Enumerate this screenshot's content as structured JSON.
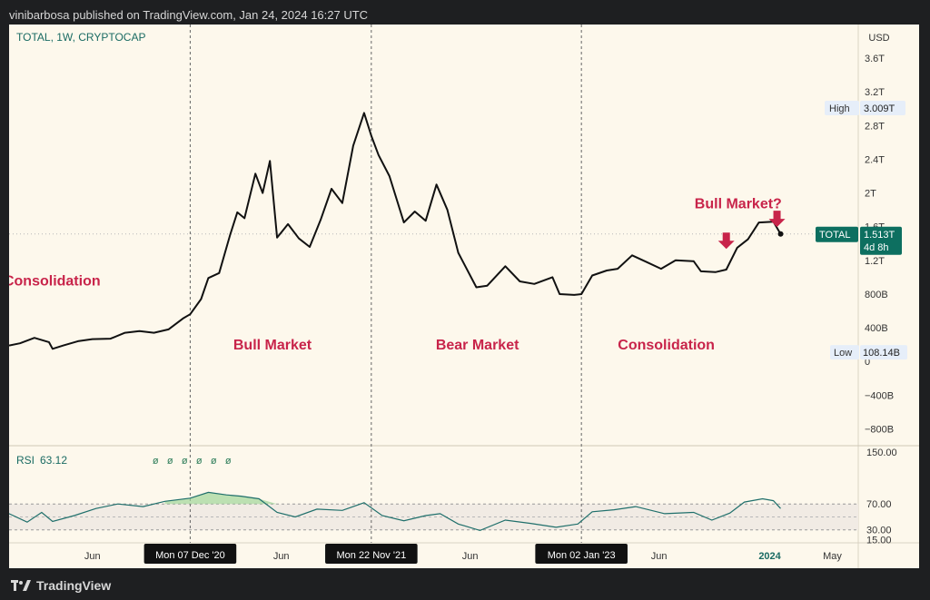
{
  "header": {
    "published": "vinibarbosa published on TradingView.com, Jan 24, 2024 16:27 UTC"
  },
  "footer": {
    "brand": "TradingView"
  },
  "colors": {
    "background": "#fdf8ec",
    "price_line": "#111111",
    "rsi_line": "#1f6f6b",
    "annotation": "#c8244a",
    "accent": "#1a6b63",
    "label_box": "#0d6f60"
  },
  "chart_data": [
    {
      "type": "line",
      "symbol": "TOTAL, 1W, CRYPTOCAP",
      "currency": "USD",
      "ylim": [
        -1000000000000,
        4000000000000
      ],
      "y_ticks": [
        {
          "value": 3600000000000,
          "label": "3.6T"
        },
        {
          "value": 3200000000000,
          "label": "3.2T"
        },
        {
          "value": 2800000000000,
          "label": "2.8T"
        },
        {
          "value": 2400000000000,
          "label": "2.4T"
        },
        {
          "value": 2000000000000,
          "label": "2T"
        },
        {
          "value": 1600000000000,
          "label": "1.6T"
        },
        {
          "value": 1200000000000,
          "label": "1.2T"
        },
        {
          "value": 800000000000,
          "label": "800B"
        },
        {
          "value": 400000000000,
          "label": "400B"
        },
        {
          "value": 0,
          "label": "0"
        },
        {
          "value": -400000000000,
          "label": "−400B"
        },
        {
          "value": -800000000000,
          "label": "−800B"
        }
      ],
      "x_ticks": [
        {
          "date": "2020-06-01",
          "label": "Jun"
        },
        {
          "date": "2021-06-01",
          "label": "Jun"
        },
        {
          "date": "2022-06-01",
          "label": "Jun"
        },
        {
          "date": "2023-06-01",
          "label": "Jun"
        },
        {
          "date": "2024-01-01",
          "label": "2024"
        },
        {
          "date": "2024-05-01",
          "label": "May"
        }
      ],
      "x_range": [
        "2019-12-23",
        "2024-06-20"
      ],
      "vertical_markers": [
        {
          "date": "2020-12-07",
          "label": "Mon 07 Dec '20"
        },
        {
          "date": "2021-11-22",
          "label": "Mon 22 Nov '21"
        },
        {
          "date": "2023-01-02",
          "label": "Mon 02 Jan '23"
        }
      ],
      "high": {
        "label": "High",
        "value": 3009000000000,
        "text": "3.009T"
      },
      "low": {
        "label": "Low",
        "value": 108140000000,
        "text": "108.14B"
      },
      "last": {
        "label": "TOTAL",
        "value": 1513000000000,
        "text": "1.513T",
        "countdown": "4d 8h"
      },
      "annotations": [
        {
          "text": "Consolidation",
          "date": "2020-03-15",
          "value": 900000000000
        },
        {
          "text": "Bull Market",
          "date": "2021-05-15",
          "value": 140000000000
        },
        {
          "text": "Bear Market",
          "date": "2022-06-15",
          "value": 140000000000
        },
        {
          "text": "Consolidation",
          "date": "2023-06-15",
          "value": 140000000000
        },
        {
          "text": "Bull Market?",
          "date": "2023-11-01",
          "value": 1820000000000
        }
      ],
      "arrows": [
        {
          "date": "2023-10-09",
          "value": 1400000000000
        },
        {
          "date": "2024-01-15",
          "value": 1660000000000
        }
      ],
      "series": [
        {
          "values": [
            [
              "2019-12-23",
              190000000000
            ],
            [
              "2020-01-13",
              215000000000
            ],
            [
              "2020-02-10",
              280000000000
            ],
            [
              "2020-03-09",
              230000000000
            ],
            [
              "2020-03-16",
              150000000000
            ],
            [
              "2020-04-06",
              190000000000
            ],
            [
              "2020-05-04",
              240000000000
            ],
            [
              "2020-06-01",
              265000000000
            ],
            [
              "2020-07-06",
              270000000000
            ],
            [
              "2020-08-03",
              340000000000
            ],
            [
              "2020-08-31",
              360000000000
            ],
            [
              "2020-09-28",
              340000000000
            ],
            [
              "2020-10-26",
              380000000000
            ],
            [
              "2020-11-23",
              510000000000
            ],
            [
              "2020-12-07",
              560000000000
            ],
            [
              "2020-12-28",
              740000000000
            ],
            [
              "2021-01-11",
              990000000000
            ],
            [
              "2021-02-01",
              1050000000000
            ],
            [
              "2021-02-22",
              1500000000000
            ],
            [
              "2021-03-08",
              1770000000000
            ],
            [
              "2021-03-22",
              1700000000000
            ],
            [
              "2021-04-12",
              2230000000000
            ],
            [
              "2021-04-26",
              2000000000000
            ],
            [
              "2021-05-10",
              2380000000000
            ],
            [
              "2021-05-24",
              1470000000000
            ],
            [
              "2021-06-14",
              1630000000000
            ],
            [
              "2021-07-05",
              1460000000000
            ],
            [
              "2021-07-26",
              1360000000000
            ],
            [
              "2021-08-16",
              1680000000000
            ],
            [
              "2021-09-06",
              2050000000000
            ],
            [
              "2021-09-27",
              1880000000000
            ],
            [
              "2021-10-18",
              2560000000000
            ],
            [
              "2021-11-08",
              2950000000000
            ],
            [
              "2021-11-22",
              2680000000000
            ],
            [
              "2021-12-06",
              2450000000000
            ],
            [
              "2021-12-27",
              2200000000000
            ],
            [
              "2022-01-24",
              1650000000000
            ],
            [
              "2022-02-14",
              1780000000000
            ],
            [
              "2022-03-07",
              1670000000000
            ],
            [
              "2022-03-28",
              2100000000000
            ],
            [
              "2022-04-18",
              1800000000000
            ],
            [
              "2022-05-09",
              1290000000000
            ],
            [
              "2022-06-13",
              880000000000
            ],
            [
              "2022-07-04",
              900000000000
            ],
            [
              "2022-08-08",
              1130000000000
            ],
            [
              "2022-09-05",
              950000000000
            ],
            [
              "2022-10-03",
              920000000000
            ],
            [
              "2022-11-07",
              1000000000000
            ],
            [
              "2022-11-21",
              800000000000
            ],
            [
              "2022-12-19",
              790000000000
            ],
            [
              "2023-01-02",
              800000000000
            ],
            [
              "2023-01-23",
              1020000000000
            ],
            [
              "2023-02-20",
              1080000000000
            ],
            [
              "2023-03-13",
              1100000000000
            ],
            [
              "2023-04-10",
              1260000000000
            ],
            [
              "2023-05-08",
              1180000000000
            ],
            [
              "2023-06-05",
              1100000000000
            ],
            [
              "2023-07-03",
              1200000000000
            ],
            [
              "2023-08-07",
              1190000000000
            ],
            [
              "2023-08-21",
              1070000000000
            ],
            [
              "2023-09-18",
              1060000000000
            ],
            [
              "2023-10-09",
              1090000000000
            ],
            [
              "2023-10-30",
              1350000000000
            ],
            [
              "2023-11-20",
              1450000000000
            ],
            [
              "2023-12-11",
              1650000000000
            ],
            [
              "2024-01-08",
              1660000000000
            ],
            [
              "2024-01-22",
              1513000000000
            ]
          ]
        }
      ]
    },
    {
      "type": "line",
      "title": "RSI",
      "value_text": "63.12",
      "ylim": [
        10,
        160
      ],
      "y_ticks": [
        {
          "value": 150,
          "label": "150.00"
        },
        {
          "value": 70,
          "label": "70.00"
        },
        {
          "value": 30,
          "label": "30.00"
        },
        {
          "value": 15,
          "label": "15.00"
        }
      ],
      "band": [
        30,
        70
      ],
      "midline": 50,
      "icon_glyph": "ø",
      "icon_count": 6,
      "series": [
        {
          "values": [
            [
              "2019-12-23",
              55
            ],
            [
              "2020-01-27",
              42
            ],
            [
              "2020-02-24",
              57
            ],
            [
              "2020-03-16",
              43
            ],
            [
              "2020-04-27",
              52
            ],
            [
              "2020-06-08",
              63
            ],
            [
              "2020-07-20",
              70
            ],
            [
              "2020-09-07",
              66
            ],
            [
              "2020-10-19",
              74
            ],
            [
              "2020-12-07",
              79
            ],
            [
              "2021-01-11",
              88
            ],
            [
              "2021-02-15",
              84
            ],
            [
              "2021-03-15",
              82
            ],
            [
              "2021-04-19",
              78
            ],
            [
              "2021-05-24",
              57
            ],
            [
              "2021-06-28",
              50
            ],
            [
              "2021-08-09",
              62
            ],
            [
              "2021-09-27",
              60
            ],
            [
              "2021-11-08",
              72
            ],
            [
              "2021-12-13",
              52
            ],
            [
              "2022-01-24",
              44
            ],
            [
              "2022-03-07",
              52
            ],
            [
              "2022-04-04",
              55
            ],
            [
              "2022-05-09",
              39
            ],
            [
              "2022-06-20",
              29
            ],
            [
              "2022-08-08",
              45
            ],
            [
              "2022-09-26",
              40
            ],
            [
              "2022-11-14",
              34
            ],
            [
              "2022-12-26",
              39
            ],
            [
              "2023-01-23",
              58
            ],
            [
              "2023-03-06",
              61
            ],
            [
              "2023-04-17",
              66
            ],
            [
              "2023-06-12",
              55
            ],
            [
              "2023-08-07",
              57
            ],
            [
              "2023-09-11",
              45
            ],
            [
              "2023-10-16",
              56
            ],
            [
              "2023-11-13",
              73
            ],
            [
              "2023-12-18",
              78
            ],
            [
              "2024-01-08",
              75
            ],
            [
              "2024-01-22",
              63
            ]
          ]
        }
      ]
    }
  ]
}
